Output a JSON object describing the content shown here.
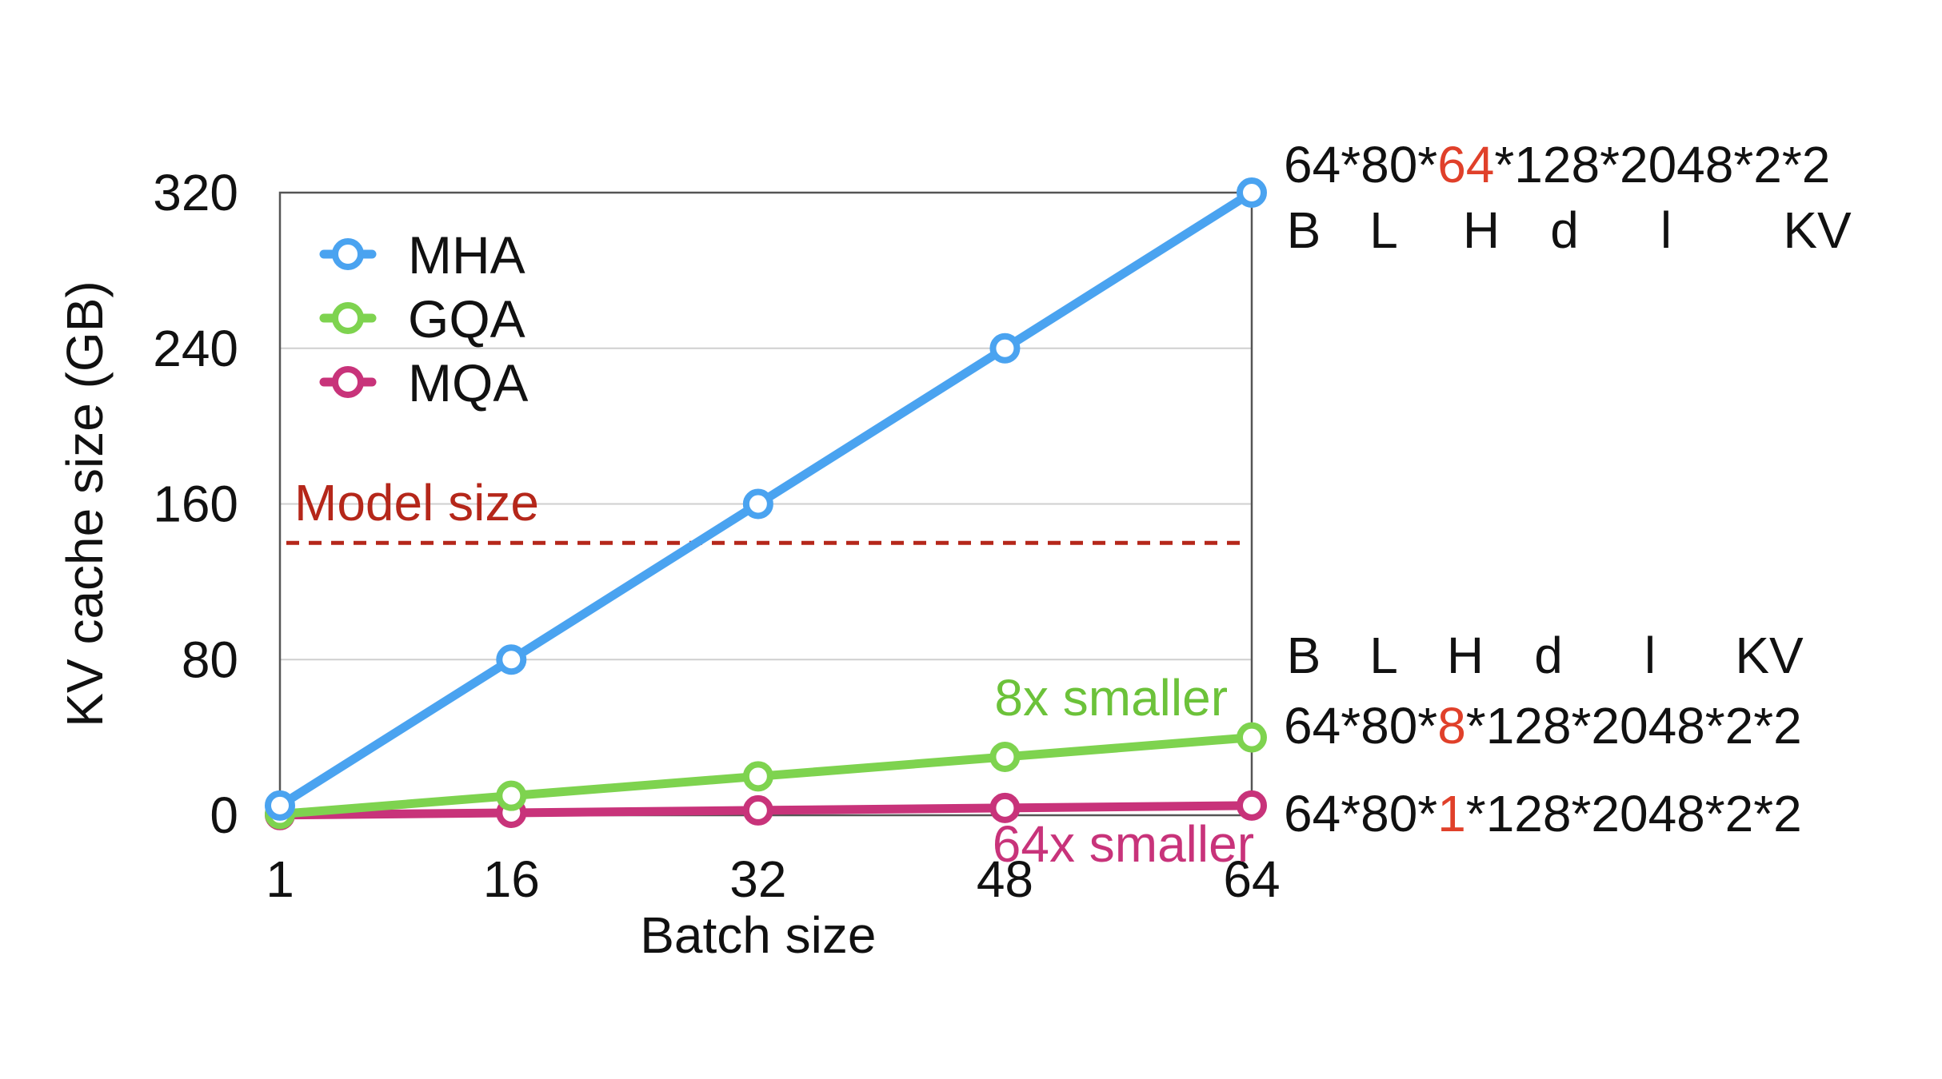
{
  "chart_data": {
    "type": "line",
    "ylabel": "KV cache size (GB)",
    "xlabel": "Batch size",
    "x": [
      1,
      16,
      32,
      48,
      64
    ],
    "x_ticks": [
      "1",
      "16",
      "32",
      "48",
      "64"
    ],
    "y_ticks": [
      "0",
      "80",
      "160",
      "240",
      "320"
    ],
    "xlim": [
      1,
      64
    ],
    "ylim": [
      0,
      320
    ],
    "grid": "horizontal",
    "legend_position": "top-left",
    "series": [
      {
        "name": "MHA",
        "color": "#4aa3f0",
        "values": [
          5,
          80,
          160,
          240,
          320
        ]
      },
      {
        "name": "GQA",
        "color": "#7ed34f",
        "values": [
          0.6,
          10,
          20,
          30,
          40
        ]
      },
      {
        "name": "MQA",
        "color": "#c8337a",
        "values": [
          0.08,
          1.25,
          2.5,
          3.75,
          5
        ]
      }
    ],
    "reference_line": {
      "label": "Model size",
      "value": 140,
      "color": "#b5271a"
    },
    "annotations": [
      {
        "text": "8x smaller",
        "color": "#6cc23a"
      },
      {
        "text": "64x smaller",
        "color": "#c8337a"
      }
    ],
    "formulas": {
      "mha": {
        "pre": "64*80*",
        "hl": "64",
        "post": "*128*2048*2*2",
        "hl_color": "#e0402a"
      },
      "gqa": {
        "pre": "64*80*",
        "hl": "8",
        "post": "*128*2048*2*2",
        "hl_color": "#e0402a"
      },
      "mqa": {
        "pre": "64*80*",
        "hl": "1",
        "post": "*128*2048*2*2",
        "hl_color": "#e0402a"
      }
    },
    "factor_labels": [
      "B",
      "L",
      "H",
      "d",
      "l",
      "KV"
    ]
  }
}
